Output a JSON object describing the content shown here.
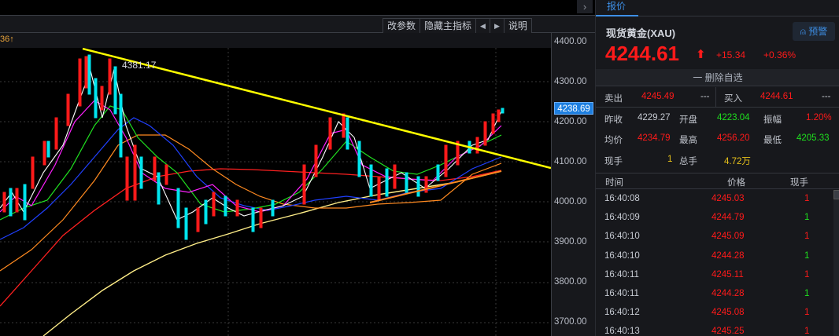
{
  "chart": {
    "collapse_icon": "›",
    "toolbar": {
      "params_label": "改参数",
      "hide_main_label": "隐藏主指标",
      "prev_icon": "◀",
      "next_icon": "▶",
      "help_label": "说明"
    },
    "info_value": "36↑",
    "peak_label": "4381.17",
    "current_price_tag": "4238.69",
    "axis_ticks": [
      "4400.00",
      "4300.00",
      "4200.00",
      "4100.00",
      "4000.00",
      "3900.00",
      "3800.00",
      "3700.00"
    ]
  },
  "quote": {
    "tab_label": "报价",
    "instrument": "现货黄金(XAU)",
    "alert_label": "预警",
    "last_price": "4244.61",
    "arrow": "⬆",
    "change": "+15.34",
    "change_pct": "+0.36%",
    "remove_label": "一 删除自选",
    "sell_label": "卖出",
    "sell_price": "4245.49",
    "sell_vol": "---",
    "buy_label": "买入",
    "buy_price": "4244.61",
    "buy_vol": "---",
    "stats": {
      "prev_close_label": "昨收",
      "prev_close": "4229.27",
      "open_label": "开盘",
      "open": "4223.04",
      "amplitude_label": "振幅",
      "amplitude": "1.20%",
      "avg_label": "均价",
      "avg": "4234.79",
      "high_label": "最高",
      "high": "4256.20",
      "low_label": "最低",
      "low": "4205.33",
      "cur_vol_label": "现手",
      "cur_vol": "1",
      "total_vol_label": "总手",
      "total_vol": "4.72万"
    },
    "ticks_header": {
      "time": "时间",
      "price": "价格",
      "volume": "现手"
    },
    "ticks": [
      {
        "time": "16:40:08",
        "price": "4245.03",
        "volume": "1",
        "vol_color": "red"
      },
      {
        "time": "16:40:09",
        "price": "4244.79",
        "volume": "1",
        "vol_color": "green"
      },
      {
        "time": "16:40:10",
        "price": "4245.09",
        "volume": "1",
        "vol_color": "red"
      },
      {
        "time": "16:40:10",
        "price": "4244.28",
        "volume": "1",
        "vol_color": "green"
      },
      {
        "time": "16:40:11",
        "price": "4245.11",
        "volume": "1",
        "vol_color": "red"
      },
      {
        "time": "16:40:11",
        "price": "4244.28",
        "volume": "1",
        "vol_color": "green"
      },
      {
        "time": "16:40:12",
        "price": "4245.08",
        "volume": "1",
        "vol_color": "red"
      },
      {
        "time": "16:40:13",
        "price": "4245.25",
        "volume": "1",
        "vol_color": "red"
      }
    ]
  },
  "colors": {
    "up": "#ff1a1a",
    "down": "#00e5ee",
    "accent": "#3d8fe6",
    "trendline": "#ffff00"
  }
}
